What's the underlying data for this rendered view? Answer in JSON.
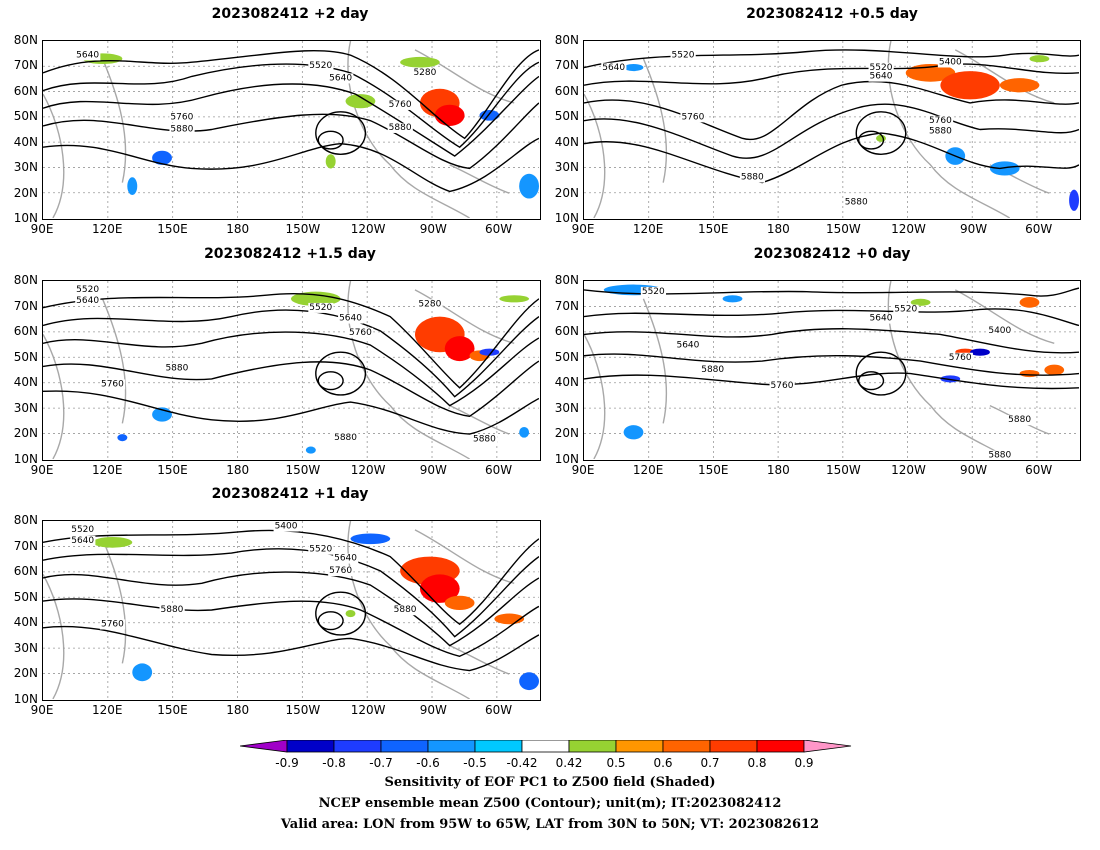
{
  "panels": [
    {
      "title": "2023082412 +2 day"
    },
    {
      "title": "2023082412 +0.5 day"
    },
    {
      "title": "2023082412 +1.5 day"
    },
    {
      "title": "2023082412 +0 day"
    },
    {
      "title": "2023082412 +1 day"
    }
  ],
  "latitude_labels": [
    "80N",
    "70N",
    "60N",
    "50N",
    "40N",
    "30N",
    "20N",
    "10N"
  ],
  "longitude_labels": [
    "90E",
    "120E",
    "150E",
    "180",
    "150W",
    "120W",
    "90W",
    "60W"
  ],
  "contour_labels": {
    "p0": [
      "5640",
      "5520",
      "5640",
      "5280",
      "5760",
      "5760",
      "5880",
      "5880"
    ],
    "p1": [
      "5520",
      "5640",
      "5520",
      "5640",
      "5400",
      "5760",
      "5760",
      "5880",
      "5880",
      "5880"
    ],
    "p2": [
      "5520",
      "5640",
      "5520",
      "5280",
      "5640",
      "5760",
      "5760",
      "5880",
      "5880",
      "5880"
    ],
    "p3": [
      "5520",
      "5520",
      "5640",
      "5640",
      "5400",
      "5760",
      "5760",
      "5880",
      "5880",
      "5880"
    ],
    "p4": [
      "5520",
      "5640",
      "5400",
      "5520",
      "5640",
      "5760",
      "5760",
      "5880",
      "5880"
    ]
  },
  "colorbar": {
    "labels": [
      "-0.9",
      "-0.8",
      "-0.7",
      "-0.6",
      "-0.5",
      "-0.42",
      "0.42",
      "0.5",
      "0.6",
      "0.7",
      "0.8",
      "0.9"
    ],
    "colors": [
      "#a000c8",
      "#0000c8",
      "#1e3cff",
      "#0f64ff",
      "#1496ff",
      "#00c8ff",
      "#ffffff",
      "#96d232",
      "#ff9600",
      "#ff6400",
      "#ff3c00",
      "#ff0000",
      "#ff96c8"
    ]
  },
  "caption": {
    "line1": "Sensitivity of EOF PC1 to Z500 field (Shaded)",
    "line2": "NCEP ensemble mean Z500 (Contour); unit(m); IT:2023082412",
    "line3": "Valid area: LON from 95W to 65W, LAT from 30N to 50N; VT: 2023082612"
  }
}
